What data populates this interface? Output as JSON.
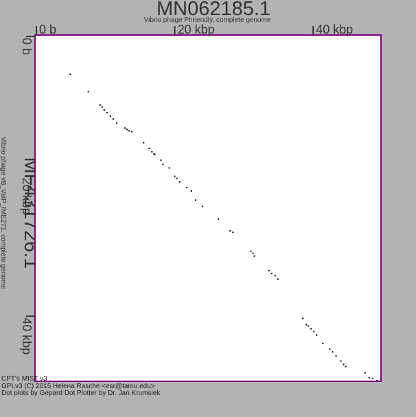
{
  "chart_data": {
    "type": "scatter",
    "title": "MN062185.1",
    "subtitle": "Vibrio phage Phriendly, complete genome",
    "xlabel": "MN062185.1",
    "ylabel": "MF431726.1",
    "ysubtitle": "Vibrio phage vB_VaiP_IME271, complete genome",
    "xlim": [
      0,
      50000
    ],
    "ylim": [
      0,
      49500
    ],
    "x_ticks": [
      {
        "value": 0,
        "label": "0 b"
      },
      {
        "value": 20000,
        "label": "20 kbp"
      },
      {
        "value": 40000,
        "label": "40 kbp"
      }
    ],
    "y_ticks": [
      {
        "value": 0,
        "label": "0 b"
      },
      {
        "value": 20000,
        "label": "20 kbp"
      },
      {
        "value": 40000,
        "label": "40 kbp"
      }
    ],
    "colors": {
      "background": "#b3b3b3",
      "plot_bg": "#ffffff",
      "frame": "#800080",
      "dots": "#000000",
      "text": "#333333"
    },
    "series": [
      {
        "values": [
          [
            5100,
            5600
          ],
          [
            7700,
            8100
          ],
          [
            9400,
            10000
          ],
          [
            9700,
            10300
          ],
          [
            10000,
            10700
          ],
          [
            10400,
            11100
          ],
          [
            10900,
            11600
          ],
          [
            11300,
            12000
          ],
          [
            11800,
            12600
          ],
          [
            13000,
            13300
          ],
          [
            13300,
            13500
          ],
          [
            13600,
            13700
          ],
          [
            14000,
            13800
          ],
          [
            15700,
            15400
          ],
          [
            16500,
            16200
          ],
          [
            16900,
            16700
          ],
          [
            17200,
            17000
          ],
          [
            17300,
            17100
          ],
          [
            18200,
            17900
          ],
          [
            18500,
            18500
          ],
          [
            19400,
            19000
          ],
          [
            20200,
            20200
          ],
          [
            20500,
            20500
          ],
          [
            20900,
            21000
          ],
          [
            21900,
            21800
          ],
          [
            22600,
            22300
          ],
          [
            23200,
            23600
          ],
          [
            24200,
            24500
          ],
          [
            26500,
            26300
          ],
          [
            28200,
            28000
          ],
          [
            28600,
            28200
          ],
          [
            31200,
            30900
          ],
          [
            31500,
            31200
          ],
          [
            31700,
            31600
          ],
          [
            33800,
            33700
          ],
          [
            34200,
            34100
          ],
          [
            34700,
            34400
          ],
          [
            35100,
            34900
          ],
          [
            38700,
            40500
          ],
          [
            39200,
            41400
          ],
          [
            39500,
            41600
          ],
          [
            39900,
            42000
          ],
          [
            40300,
            42400
          ],
          [
            40700,
            42900
          ],
          [
            41600,
            44100
          ],
          [
            42600,
            44900
          ],
          [
            43000,
            45300
          ],
          [
            43500,
            45900
          ],
          [
            44200,
            46600
          ],
          [
            44600,
            47100
          ],
          [
            44900,
            47400
          ],
          [
            47700,
            48300
          ],
          [
            48300,
            49000
          ],
          [
            48800,
            49100
          ],
          [
            49400,
            49400
          ]
        ]
      }
    ]
  },
  "credits": {
    "line1": "CPT's MIST v3",
    "line2": "GPLv3 (C) 2015 Helena Rasche <esr@tamu.edu>",
    "line3": "Dot plots by Gepard Dot Plotter by Dr. Jan Krumsiek"
  }
}
